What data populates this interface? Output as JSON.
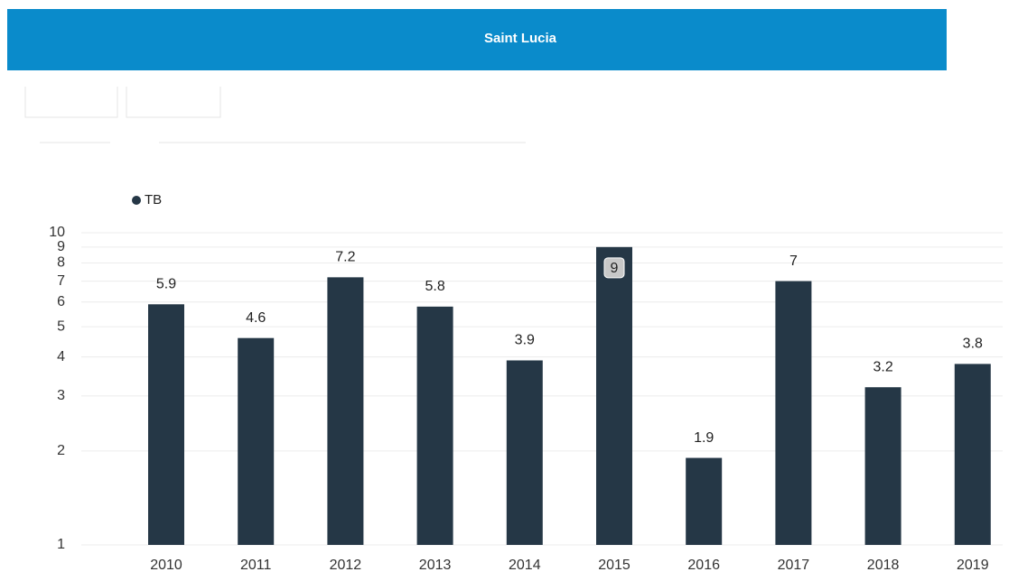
{
  "chart_data": {
    "type": "bar",
    "title": "Saint Lucia",
    "legend": "TB",
    "legend_position": "top-left",
    "categories": [
      "2010",
      "2011",
      "2012",
      "2013",
      "2014",
      "2015",
      "2016",
      "2017",
      "2018",
      "2019"
    ],
    "values": [
      5.9,
      4.6,
      7.2,
      5.8,
      3.9,
      9,
      1.9,
      7,
      3.2,
      3.8
    ],
    "color": "#253746",
    "yscale": "log",
    "ylim": [
      1,
      10
    ],
    "yticks": [
      1,
      2,
      3,
      4,
      5,
      6,
      7,
      8,
      9,
      10
    ],
    "grid": true
  }
}
